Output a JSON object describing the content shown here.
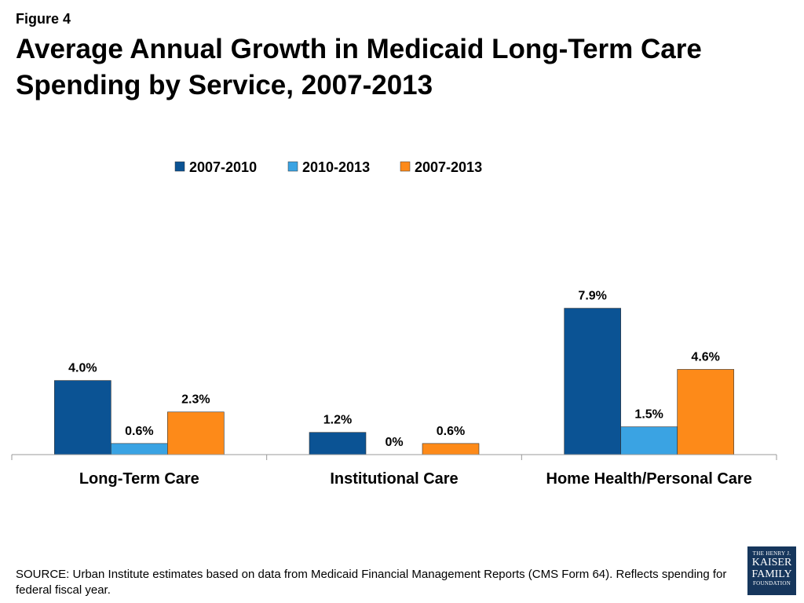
{
  "figure_label": "Figure 4",
  "title": "Average Annual Growth in Medicaid Long-Term Care Spending by Service, 2007-2013",
  "source": "SOURCE: Urban Institute estimates based on data from Medicaid Financial Management Reports (CMS Form 64). Reflects spending for federal fiscal year.",
  "logo": {
    "line1": "THE HENRY J.",
    "line2": "KAISER",
    "line3": "FAMILY",
    "line4": "FOUNDATION"
  },
  "chart_data": {
    "type": "bar",
    "title": "Average Annual Growth in Medicaid Long-Term Care Spending by Service, 2007-2013",
    "categories": [
      "Long-Term Care",
      "Institutional Care",
      "Home Health/Personal Care"
    ],
    "series": [
      {
        "name": "2007-2010",
        "color": "#0b5394",
        "values": [
          4.0,
          1.2,
          7.9
        ],
        "labels": [
          "4.0%",
          "1.2%",
          "7.9%"
        ]
      },
      {
        "name": "2010-2013",
        "color": "#3aa3e3",
        "values": [
          0.6,
          0.0,
          1.5
        ],
        "labels": [
          "0.6%",
          "0%",
          "1.5%"
        ]
      },
      {
        "name": "2007-2013",
        "color": "#fd8a19",
        "values": [
          2.3,
          0.6,
          4.6
        ],
        "labels": [
          "2.3%",
          "0.6%",
          "4.6%"
        ]
      }
    ],
    "ylim": [
      0,
      9
    ],
    "grid": false,
    "legend_position": "top-center"
  }
}
